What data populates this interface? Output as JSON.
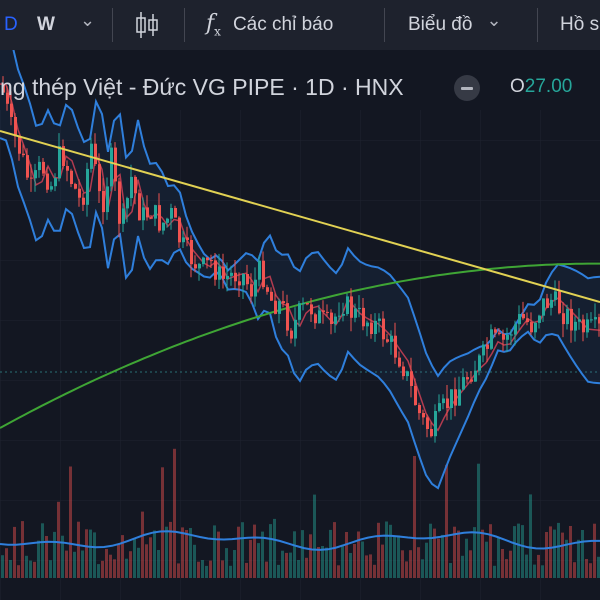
{
  "toolbar": {
    "interval_d": "D",
    "interval_w": "W",
    "chevron_glyph": "⌄",
    "indicators_icon_glyph": "f",
    "indicators_icon_sub": "x",
    "indicators_label": "Các chỉ báo",
    "chart_label": "Biểu đồ",
    "profile_label": "Hồ s"
  },
  "legend": {
    "symbol_text": "ng thép Việt - Đức VG PIPE · 1D · HNX",
    "open_key": "O",
    "open_value": "27.00"
  },
  "colors": {
    "background": "#131722",
    "toolbar_bg": "#1e222d",
    "accent_blue": "#2962ff",
    "up": "#26a69a",
    "down": "#ef5350",
    "bollinger": "#2f7fdc",
    "ma_red": "#b23b4f",
    "ma_green": "#3fa535",
    "trendline": "#e1d153"
  },
  "chart_data": {
    "type": "candlestick",
    "price_path": [
      84,
      128,
      155,
      190,
      165,
      185,
      150,
      180,
      205,
      145,
      210,
      160,
      232,
      178,
      218,
      210,
      225,
      215,
      245,
      258,
      270,
      262,
      280,
      275,
      272,
      290,
      268,
      300,
      305,
      330,
      310,
      308,
      320,
      328,
      300,
      312,
      318,
      322,
      330,
      345,
      360,
      390,
      420,
      432,
      412,
      398,
      385,
      370,
      360,
      340,
      345,
      330,
      318,
      325,
      305,
      300,
      310,
      320,
      330
    ]
  }
}
